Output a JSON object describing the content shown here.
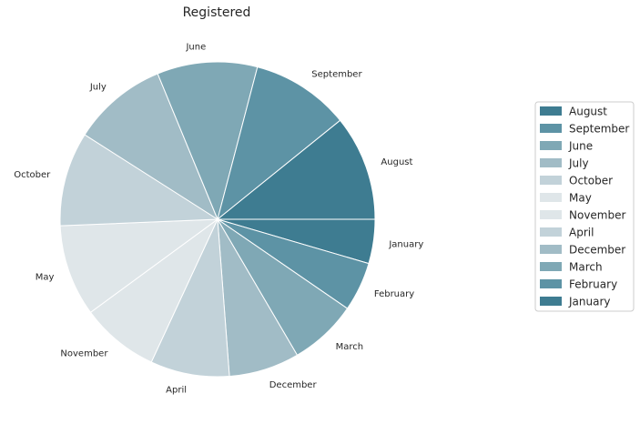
{
  "chart_data": {
    "type": "pie",
    "title": "Registered",
    "categories": [
      "January",
      "February",
      "March",
      "December",
      "April",
      "November",
      "May",
      "October",
      "July",
      "June",
      "September",
      "August"
    ],
    "values": [
      5.2,
      5.8,
      8.0,
      8.3,
      9.3,
      9.2,
      10.8,
      11.1,
      11.2,
      11.8,
      11.6,
      12.4
    ],
    "colors": [
      "#3e7c91",
      "#5d93a5",
      "#7fa8b5",
      "#a1bcc6",
      "#c2d2d9",
      "#dfe6e9",
      "#dfe6e9",
      "#c2d2d9",
      "#a1bcc6",
      "#7fa8b5",
      "#5d93a5",
      "#3e7c91"
    ],
    "start_angle": 0,
    "direction": "clockwise",
    "legend": {
      "placement": "right",
      "entries": [
        "August",
        "September",
        "June",
        "July",
        "October",
        "May",
        "November",
        "April",
        "December",
        "March",
        "February",
        "January"
      ]
    }
  }
}
